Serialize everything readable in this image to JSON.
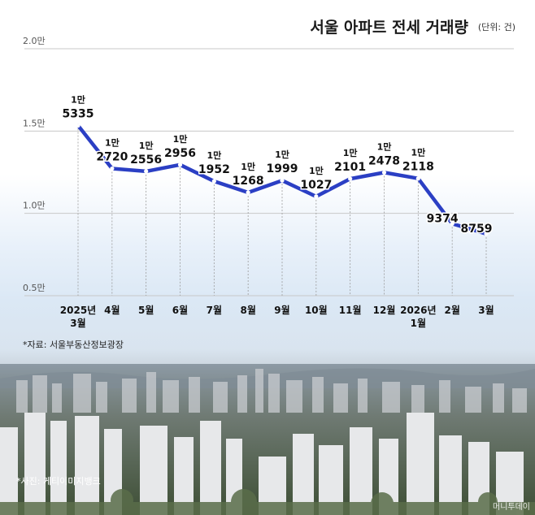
{
  "header": {
    "title": "서울 아파트 전세 거래량",
    "unit": "(단위: 건)"
  },
  "chart_data": {
    "type": "line",
    "title": "서울 아파트 전세 거래량",
    "unit": "(단위: 건)",
    "xlabel": "",
    "ylabel": "",
    "categories": [
      "2025년 3월",
      "4월",
      "5월",
      "6월",
      "7월",
      "8월",
      "9월",
      "10월",
      "11월",
      "12월",
      "2026년 1월",
      "2월",
      "3월"
    ],
    "values": [
      15335,
      12720,
      12556,
      12956,
      11952,
      11268,
      11999,
      11027,
      12101,
      12478,
      12118,
      9374,
      8759
    ],
    "data_labels": [
      {
        "top": "1만",
        "bottom": "5335"
      },
      {
        "top": "1만",
        "bottom": "2720"
      },
      {
        "top": "1만",
        "bottom": "2556"
      },
      {
        "top": "1만",
        "bottom": "2956"
      },
      {
        "top": "1만",
        "bottom": "1952"
      },
      {
        "top": "1만",
        "bottom": "1268"
      },
      {
        "top": "1만",
        "bottom": "1999"
      },
      {
        "top": "1만",
        "bottom": "1027"
      },
      {
        "top": "1만",
        "bottom": "2101"
      },
      {
        "top": "1만",
        "bottom": "2478"
      },
      {
        "top": "1만",
        "bottom": "2118"
      },
      {
        "top": "",
        "bottom": "9374"
      },
      {
        "top": "",
        "bottom": "8759"
      }
    ],
    "x_tick_labels": [
      [
        "2025년",
        "3월"
      ],
      [
        "4월"
      ],
      [
        "5월"
      ],
      [
        "6월"
      ],
      [
        "7월"
      ],
      [
        "8월"
      ],
      [
        "9월"
      ],
      [
        "10월"
      ],
      [
        "11월"
      ],
      [
        "12월"
      ],
      [
        "2026년",
        "1월"
      ],
      [
        "2월"
      ],
      [
        "3월"
      ]
    ],
    "y_ticks": [
      {
        "value": 20000,
        "label": "2.0만"
      },
      {
        "value": 15000,
        "label": "1.5만"
      },
      {
        "value": 10000,
        "label": "1.0만"
      },
      {
        "value": 5000,
        "label": "0.5만"
      }
    ],
    "ylim": [
      5000,
      20000
    ],
    "grid": true,
    "line_color": "#2b3fc4"
  },
  "footer": {
    "source": "*자료: 서울부동산정보광장",
    "photo_credit": "*사진: 게티이미지뱅크",
    "watermark": "머니투데이"
  }
}
